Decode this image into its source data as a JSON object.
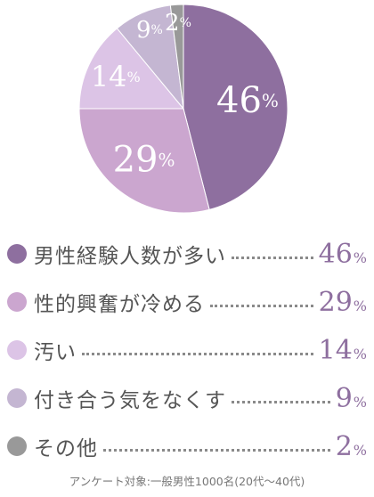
{
  "chart_data": {
    "type": "pie",
    "slices": [
      {
        "label": "男性経験人数が多い",
        "value": 46,
        "color": "#8e6f9f",
        "label_color": "#8e6f9f"
      },
      {
        "label": "性的興奮が冷める",
        "value": 29,
        "color": "#cba6cf",
        "label_color": "#8e6f9f"
      },
      {
        "label": "汚い",
        "value": 14,
        "color": "#dcc4e6",
        "label_color": "#8e6f9f"
      },
      {
        "label": "付き合う気をなくす",
        "value": 9,
        "color": "#c4b6d2",
        "label_color": "#8e6f9f"
      },
      {
        "label": "その他",
        "value": 2,
        "color": "#999999",
        "label_color": "#8e6f9f"
      }
    ],
    "unit": "%"
  },
  "footnote": "アンケート対象:一般男性1000名(20代〜40代)"
}
